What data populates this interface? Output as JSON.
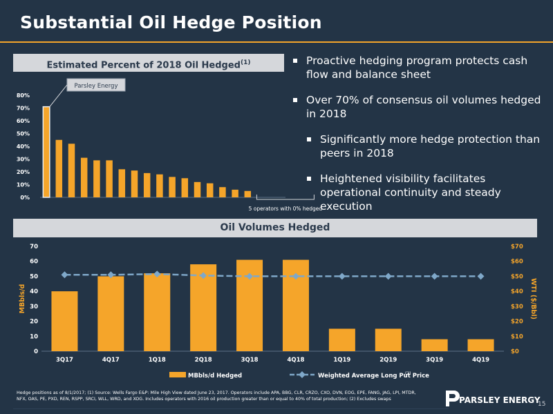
{
  "title": "Substantial Oil Hedge Position",
  "top_chart": {
    "title": "Estimated Percent of 2018 Oil Hedged",
    "title_sup": "(1)",
    "callout": "Parsley Energy",
    "bracket_label": "5 operators with 0% hedged"
  },
  "bullets": [
    {
      "text": "Proactive hedging program protects cash flow and balance sheet",
      "level": 1
    },
    {
      "text": "Over 70% of consensus oil volumes hedged in 2018",
      "level": 1
    },
    {
      "text": "Significantly more hedge protection than peers in 2018",
      "level": 2
    },
    {
      "text": "Heightened visibility facilitates operational continuity and steady execution",
      "level": 2
    }
  ],
  "bottom_chart": {
    "title": "Oil Volumes Hedged",
    "legend_bar": "MBbls/d Hedged",
    "legend_line": "Weighted Average Long Put Price",
    "legend_line_sup": "(2)"
  },
  "footnote": "Hedge positions as of 8/1/2017; (1) Source: Wells Fargo E&P: Mile High View dated June 23, 2017. Operators include APA, BBG, CLR, CRZO, CXO, DVN, EOG, EPE, FANG, JAG, LPI, MTDR, NFX, OAS, PE, PXD, REN, RSPP, SRCI, WLL, WRD, and XOG. Includes operators with 2016 oil production greater than or equal to 40% of total production; (2) Excludes swaps",
  "logo_text": "PARSLEY ENERGY",
  "page_number": "15",
  "colors": {
    "bar": "#f5a52a",
    "line": "#7fa8c9",
    "background": "#233446",
    "highlight": "#e8eef5"
  },
  "chart_data": [
    {
      "type": "bar",
      "title": "Estimated Percent of 2018 Oil Hedged",
      "xlabel": "",
      "ylabel": "",
      "ylim": [
        0,
        80
      ],
      "yticks": [
        "0%",
        "10%",
        "20%",
        "30%",
        "40%",
        "50%",
        "60%",
        "70%",
        "80%"
      ],
      "values": [
        71,
        45,
        42,
        31,
        29,
        29,
        22,
        21,
        19,
        18,
        16,
        15,
        12,
        11,
        8,
        6,
        5,
        0,
        0,
        0,
        0,
        0
      ],
      "grid": false,
      "legend": "none"
    },
    {
      "type": "bar",
      "title": "Oil Volumes Hedged",
      "categories": [
        "3Q17",
        "4Q17",
        "1Q18",
        "2Q18",
        "3Q18",
        "4Q18",
        "1Q19",
        "2Q19",
        "3Q19",
        "4Q19"
      ],
      "series": [
        {
          "name": "MBbls/d Hedged",
          "type": "bar",
          "axis": "left",
          "values": [
            40,
            50,
            52,
            58,
            61,
            61,
            15,
            15,
            8,
            8
          ]
        },
        {
          "name": "Weighted Average Long Put Price",
          "type": "line",
          "axis": "right",
          "values": [
            51,
            51,
            51.5,
            50.5,
            50,
            50,
            50,
            50,
            50,
            50
          ]
        }
      ],
      "ylabel": "MBbls/d",
      "y2label": "WTI ($/Bbl)",
      "ylim": [
        0,
        70
      ],
      "y2lim": [
        0,
        70
      ],
      "yticks": [
        "0",
        "10",
        "20",
        "30",
        "40",
        "50",
        "60",
        "70"
      ],
      "y2ticks": [
        "$0",
        "$10",
        "$20",
        "$30",
        "$40",
        "$50",
        "$60",
        "$70"
      ],
      "grid": false,
      "legend": "bottom"
    }
  ]
}
